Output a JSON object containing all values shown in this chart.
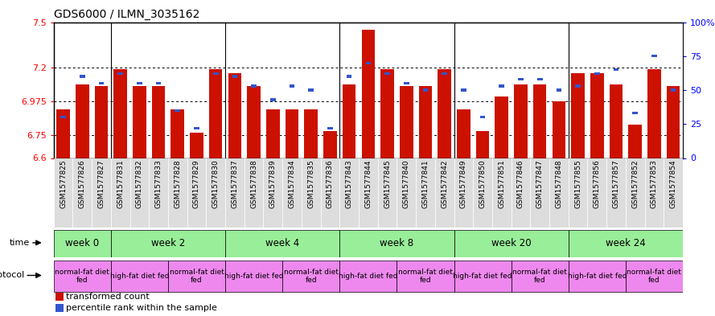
{
  "title": "GDS6000 / ILMN_3035162",
  "samples": [
    "GSM1577825",
    "GSM1577826",
    "GSM1577827",
    "GSM1577831",
    "GSM1577832",
    "GSM1577833",
    "GSM1577828",
    "GSM1577829",
    "GSM1577830",
    "GSM1577837",
    "GSM1577838",
    "GSM1577839",
    "GSM1577834",
    "GSM1577835",
    "GSM1577836",
    "GSM1577843",
    "GSM1577844",
    "GSM1577845",
    "GSM1577840",
    "GSM1577841",
    "GSM1577842",
    "GSM1577849",
    "GSM1577850",
    "GSM1577851",
    "GSM1577846",
    "GSM1577847",
    "GSM1577848",
    "GSM1577855",
    "GSM1577856",
    "GSM1577857",
    "GSM1577852",
    "GSM1577853",
    "GSM1577854"
  ],
  "red_values": [
    6.92,
    7.085,
    7.075,
    7.19,
    7.075,
    7.075,
    6.92,
    6.77,
    7.19,
    7.16,
    7.075,
    6.92,
    6.92,
    6.92,
    6.78,
    7.085,
    7.45,
    7.19,
    7.075,
    7.075,
    7.19,
    6.92,
    6.78,
    7.005,
    7.085,
    7.085,
    6.975,
    7.16,
    7.16,
    7.085,
    6.82,
    7.19,
    7.075
  ],
  "blue_values": [
    30,
    60,
    55,
    62,
    55,
    55,
    35,
    22,
    62,
    60,
    53,
    43,
    53,
    50,
    22,
    60,
    70,
    62,
    55,
    50,
    62,
    50,
    30,
    53,
    58,
    58,
    50,
    53,
    62,
    65,
    33,
    75,
    50
  ],
  "y_min": 6.6,
  "y_max": 7.5,
  "y_ticks": [
    6.6,
    6.75,
    6.975,
    7.2,
    7.5
  ],
  "right_y_ticks": [
    0,
    25,
    50,
    75,
    100
  ],
  "bar_color": "#cc1100",
  "blue_color": "#3355cc",
  "time_groups": [
    {
      "label": "week 0",
      "start": 0,
      "end": 3
    },
    {
      "label": "week 2",
      "start": 3,
      "end": 9
    },
    {
      "label": "week 4",
      "start": 9,
      "end": 15
    },
    {
      "label": "week 8",
      "start": 15,
      "end": 21
    },
    {
      "label": "week 20",
      "start": 21,
      "end": 27
    },
    {
      "label": "week 24",
      "start": 27,
      "end": 33
    }
  ],
  "protocol_groups": [
    {
      "label": "normal-fat diet\nfed",
      "start": 0,
      "end": 3
    },
    {
      "label": "high-fat diet fed",
      "start": 3,
      "end": 6
    },
    {
      "label": "normal-fat diet\nfed",
      "start": 6,
      "end": 9
    },
    {
      "label": "high-fat diet fed",
      "start": 9,
      "end": 12
    },
    {
      "label": "normal-fat diet\nfed",
      "start": 12,
      "end": 15
    },
    {
      "label": "high-fat diet fed",
      "start": 15,
      "end": 18
    },
    {
      "label": "normal-fat diet\nfed",
      "start": 18,
      "end": 21
    },
    {
      "label": "high-fat diet fed",
      "start": 21,
      "end": 24
    },
    {
      "label": "normal-fat diet\nfed",
      "start": 24,
      "end": 27
    },
    {
      "label": "high-fat diet fed",
      "start": 27,
      "end": 30
    },
    {
      "label": "normal-fat diet\nfed",
      "start": 30,
      "end": 33
    }
  ],
  "week_boundaries": [
    3,
    9,
    15,
    21,
    27
  ],
  "time_color": "#99ee99",
  "protocol_color": "#ee88ee",
  "label_bg_color": "#dddddd"
}
